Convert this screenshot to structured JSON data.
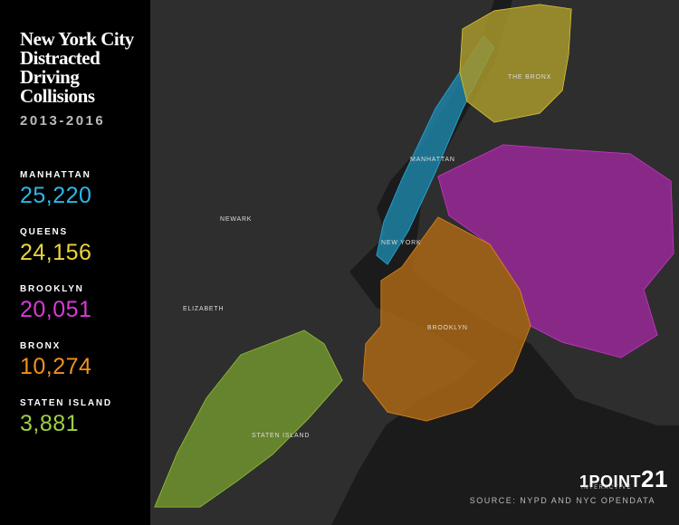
{
  "title": [
    "New York City",
    "Distracted",
    "Driving",
    "Collisions"
  ],
  "subtitle": "2013-2016",
  "boroughs": [
    {
      "name": "MANHATTAN",
      "count": "25,220",
      "color": "#2bb8ea"
    },
    {
      "name": "QUEENS",
      "count": "24,156",
      "color": "#ecd63e"
    },
    {
      "name": "BROOKLYN",
      "count": "20,051",
      "color": "#d83ad8"
    },
    {
      "name": "BRONX",
      "count": "10,274",
      "color": "#f0911f"
    },
    {
      "name": "STATEN ISLAND",
      "count": "3,881",
      "color": "#9fd040"
    }
  ],
  "map_labels": [
    "THE BRONX",
    "MANHATTAN",
    "BROOKLYN",
    "NEWARK",
    "ELIZABETH",
    "STATEN ISLAND",
    "NEW YORK"
  ],
  "logo": {
    "name": "1POINT",
    "number": "21",
    "tagline": "INTERACTIVE"
  },
  "source": "SOURCE: NYPD AND NYC OPENDATA"
}
